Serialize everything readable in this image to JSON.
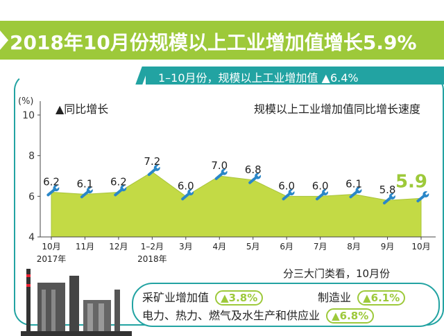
{
  "headline": "2018年10月份规模以上工业增加值增长5.9%",
  "subhead": {
    "label": "1–10月份，规模以上工业增加值",
    "value": "▲6.4%"
  },
  "colors": {
    "green": "#9dc93a",
    "teal": "#22a3a2",
    "area": "#c3da45",
    "wrench": "#2a87c8"
  },
  "chart_data": {
    "type": "area",
    "title": "规模以上工业增加值同比增长速度",
    "legend": "▲同比增长",
    "ylabel": "(%)",
    "ylim": [
      4,
      10
    ],
    "yticks": [
      4,
      6,
      8,
      10
    ],
    "categories": [
      "10月",
      "11月",
      "12月",
      "1–2月",
      "3月",
      "4月",
      "5月",
      "6月",
      "7月",
      "8月",
      "9月",
      "10月"
    ],
    "year_labels": [
      {
        "category_index": 0,
        "text": "2017年"
      },
      {
        "category_index": 3,
        "text": "2018年"
      }
    ],
    "values": [
      6.2,
      6.1,
      6.2,
      7.2,
      6.0,
      7.0,
      6.8,
      6.0,
      6.0,
      6.1,
      5.8,
      5.9
    ],
    "data_labels": [
      "6.2",
      "6.1",
      "6.2",
      "7.2",
      "6.0",
      "7.0",
      "6.8",
      "6.0",
      "6.0",
      "6.1",
      "5.8",
      "5.9"
    ],
    "highlight_last": true
  },
  "breakdown": {
    "title": "分三大门类看，10月份",
    "items": [
      {
        "label": "采矿业增加值",
        "value": "▲3.8%"
      },
      {
        "label": "制造业",
        "value": "▲6.1%"
      },
      {
        "label": "电力、热力、燃气及水生产和供应业",
        "value": "▲6.8%"
      }
    ]
  }
}
